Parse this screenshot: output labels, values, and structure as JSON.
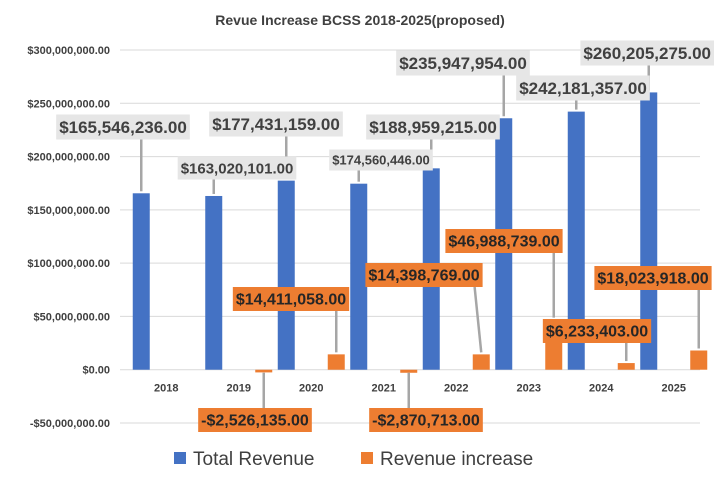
{
  "chart_data": {
    "type": "bar",
    "title": "Revue Increase BCSS 2018-2025(proposed)",
    "categories": [
      "2018",
      "2019",
      "2020",
      "2021",
      "2022",
      "2023",
      "2024",
      "2025"
    ],
    "series": [
      {
        "name": "Total Revenue",
        "color": "#4472C4",
        "values": [
          165546236.0,
          163020101.0,
          177431159.0,
          174560446.0,
          188959215.0,
          235947954.0,
          242181357.0,
          260205275.0
        ],
        "labels": [
          "$165,546,236.00",
          "$163,020,101.00",
          "$177,431,159.00",
          "$174,560,446.00",
          "$188,959,215.00",
          "$235,947,954.00",
          "$242,181,357.00",
          "$260,205,275.00"
        ]
      },
      {
        "name": "Revenue increase",
        "color": "#ED7D31",
        "values": [
          null,
          -2526135.0,
          14411058.0,
          -2870713.0,
          14398769.0,
          46988739.0,
          6233403.0,
          18023918.0
        ],
        "labels": [
          "",
          "-$2,526,135.00",
          "$14,411,058.00",
          "-$2,870,713.00",
          "$14,398,769.00",
          "$46,988,739.00",
          "$6,233,403.00",
          "$18,023,918.00"
        ]
      }
    ],
    "ylim": [
      -50000000,
      300000000
    ],
    "yticks": [
      {
        "value": 300000000,
        "label": "$300,000,000.00"
      },
      {
        "value": 250000000,
        "label": "$250,000,000.00"
      },
      {
        "value": 200000000,
        "label": "$200,000,000.00"
      },
      {
        "value": 150000000,
        "label": "$150,000,000.00"
      },
      {
        "value": 100000000,
        "label": "$100,000,000.00"
      },
      {
        "value": 50000000,
        "label": "$50,000,000.00"
      },
      {
        "value": 0,
        "label": "$0.00"
      },
      {
        "value": -50000000,
        "label": "-$50,000,000.00"
      }
    ],
    "grid": true,
    "legend_position": "bottom"
  }
}
